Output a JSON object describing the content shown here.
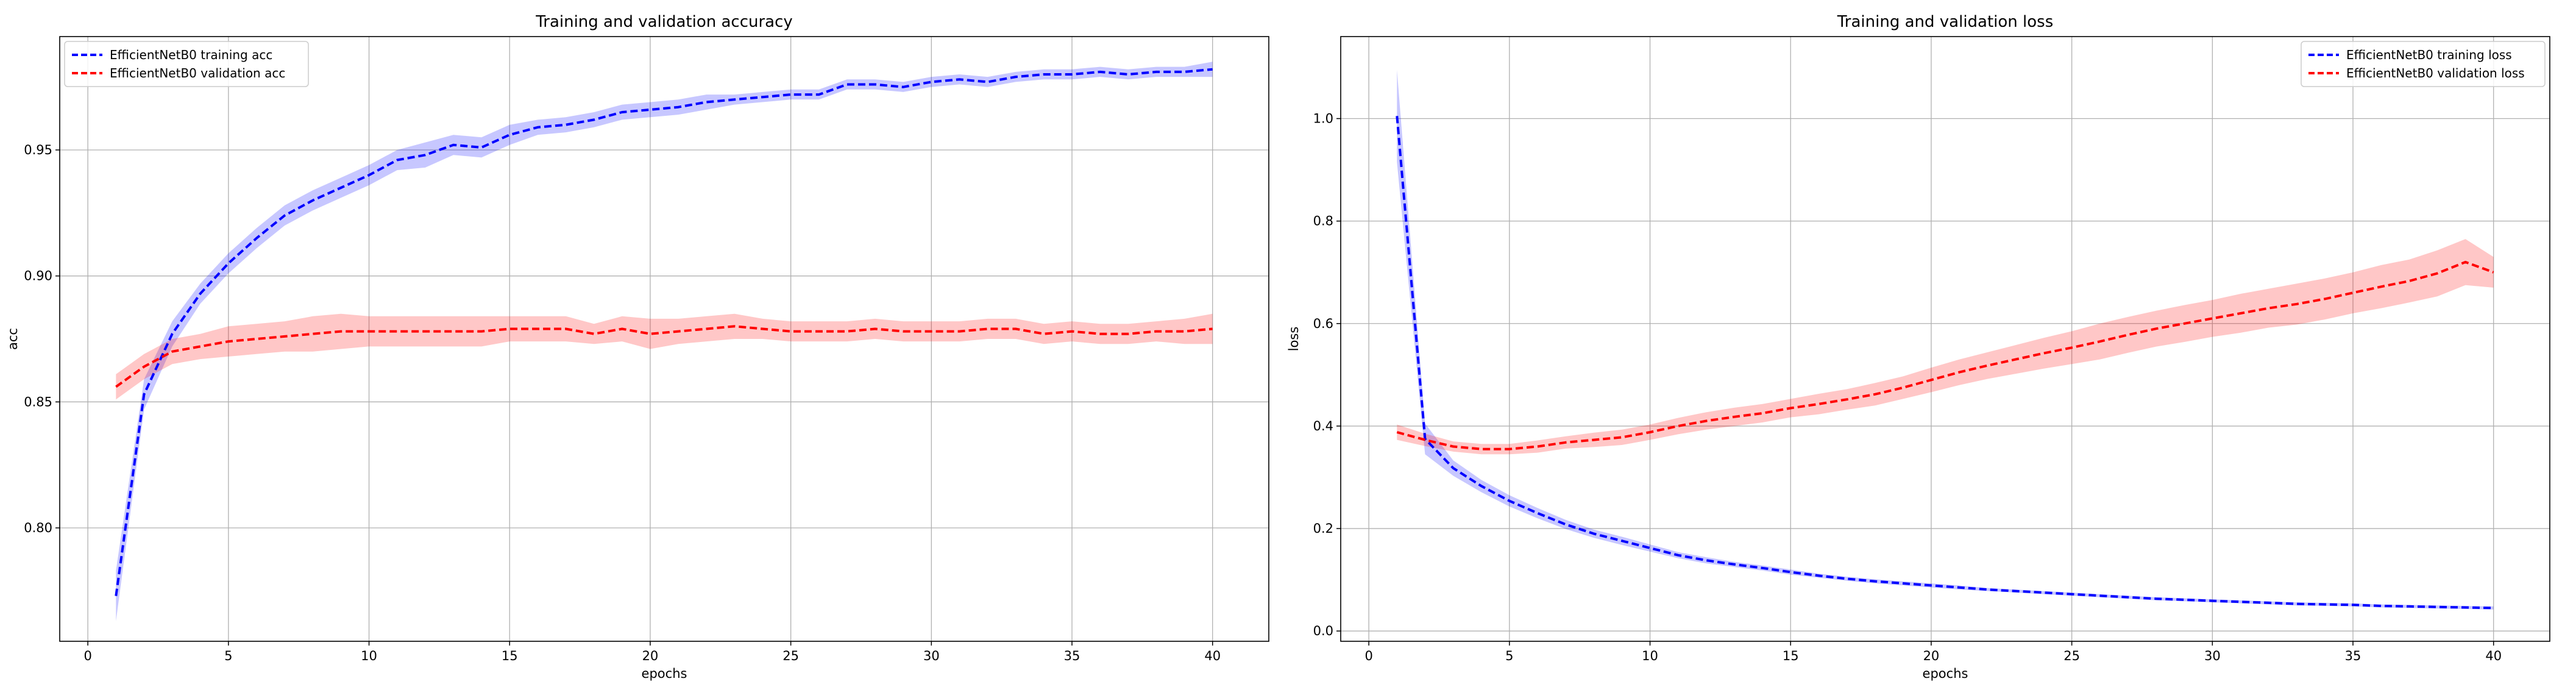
{
  "chart_data": [
    {
      "type": "line",
      "title": "Training and validation accuracy",
      "xlabel": "epochs",
      "ylabel": "acc",
      "xlim": [
        -1,
        42
      ],
      "ylim": [
        0.755,
        0.995
      ],
      "xticks": [
        0,
        5,
        10,
        15,
        20,
        25,
        30,
        35,
        40
      ],
      "yticks": [
        0.8,
        0.85,
        0.9,
        0.95
      ],
      "grid": true,
      "legend_position": "top-left",
      "x": [
        1,
        2,
        3,
        4,
        5,
        6,
        7,
        8,
        9,
        10,
        11,
        12,
        13,
        14,
        15,
        16,
        17,
        18,
        19,
        20,
        21,
        22,
        23,
        24,
        25,
        26,
        27,
        28,
        29,
        30,
        31,
        32,
        33,
        34,
        35,
        36,
        37,
        38,
        39,
        40
      ],
      "series": [
        {
          "name": "EfficientNetB0 training acc",
          "color": "#0000ff",
          "values": [
            0.773,
            0.853,
            0.877,
            0.893,
            0.905,
            0.915,
            0.924,
            0.93,
            0.935,
            0.94,
            0.946,
            0.948,
            0.952,
            0.951,
            0.956,
            0.959,
            0.96,
            0.962,
            0.965,
            0.966,
            0.967,
            0.969,
            0.97,
            0.971,
            0.972,
            0.972,
            0.976,
            0.976,
            0.975,
            0.977,
            0.978,
            0.977,
            0.979,
            0.98,
            0.98,
            0.981,
            0.98,
            0.981,
            0.981,
            0.982
          ],
          "band": [
            0.01,
            0.006,
            0.005,
            0.004,
            0.004,
            0.004,
            0.004,
            0.004,
            0.004,
            0.004,
            0.004,
            0.005,
            0.004,
            0.004,
            0.004,
            0.003,
            0.003,
            0.003,
            0.003,
            0.003,
            0.003,
            0.003,
            0.002,
            0.002,
            0.002,
            0.002,
            0.002,
            0.002,
            0.002,
            0.002,
            0.002,
            0.002,
            0.002,
            0.002,
            0.002,
            0.002,
            0.002,
            0.002,
            0.002,
            0.003
          ]
        },
        {
          "name": "EfficientNetB0 validation acc",
          "color": "#ff0000",
          "values": [
            0.856,
            0.864,
            0.87,
            0.872,
            0.874,
            0.875,
            0.876,
            0.877,
            0.878,
            0.878,
            0.878,
            0.878,
            0.878,
            0.878,
            0.879,
            0.879,
            0.879,
            0.877,
            0.879,
            0.877,
            0.878,
            0.879,
            0.88,
            0.879,
            0.878,
            0.878,
            0.878,
            0.879,
            0.878,
            0.878,
            0.878,
            0.879,
            0.879,
            0.877,
            0.878,
            0.877,
            0.877,
            0.878,
            0.878,
            0.879
          ],
          "band": [
            0.005,
            0.005,
            0.005,
            0.005,
            0.006,
            0.006,
            0.006,
            0.007,
            0.007,
            0.006,
            0.006,
            0.006,
            0.006,
            0.006,
            0.005,
            0.005,
            0.005,
            0.004,
            0.005,
            0.006,
            0.005,
            0.005,
            0.005,
            0.004,
            0.004,
            0.004,
            0.004,
            0.004,
            0.004,
            0.004,
            0.004,
            0.004,
            0.004,
            0.004,
            0.004,
            0.004,
            0.004,
            0.004,
            0.005,
            0.006
          ]
        }
      ]
    },
    {
      "type": "line",
      "title": "Training and validation loss",
      "xlabel": "epochs",
      "ylabel": "loss",
      "xlim": [
        -1,
        42
      ],
      "ylim": [
        -0.02,
        1.16
      ],
      "xticks": [
        0,
        5,
        10,
        15,
        20,
        25,
        30,
        35,
        40
      ],
      "yticks": [
        0.0,
        0.2,
        0.4,
        0.6,
        0.8,
        1.0
      ],
      "grid": true,
      "legend_position": "top-right",
      "x": [
        1,
        2,
        3,
        4,
        5,
        6,
        7,
        8,
        9,
        10,
        11,
        12,
        13,
        14,
        15,
        16,
        17,
        18,
        19,
        20,
        21,
        22,
        23,
        24,
        25,
        26,
        27,
        28,
        29,
        30,
        31,
        32,
        33,
        34,
        35,
        36,
        37,
        38,
        39,
        40
      ],
      "series": [
        {
          "name": "EfficientNetB0 training loss",
          "color": "#0000ff",
          "values": [
            1.005,
            0.375,
            0.318,
            0.283,
            0.254,
            0.23,
            0.208,
            0.19,
            0.176,
            0.162,
            0.148,
            0.138,
            0.13,
            0.123,
            0.115,
            0.108,
            0.102,
            0.097,
            0.093,
            0.089,
            0.085,
            0.081,
            0.078,
            0.075,
            0.072,
            0.069,
            0.066,
            0.063,
            0.061,
            0.059,
            0.057,
            0.055,
            0.053,
            0.052,
            0.051,
            0.049,
            0.048,
            0.047,
            0.046,
            0.045
          ],
          "band": [
            0.09,
            0.03,
            0.015,
            0.012,
            0.011,
            0.01,
            0.009,
            0.008,
            0.008,
            0.007,
            0.006,
            0.006,
            0.005,
            0.005,
            0.005,
            0.004,
            0.004,
            0.004,
            0.004,
            0.004,
            0.004,
            0.003,
            0.003,
            0.003,
            0.003,
            0.003,
            0.003,
            0.003,
            0.003,
            0.003,
            0.003,
            0.003,
            0.003,
            0.003,
            0.003,
            0.003,
            0.003,
            0.003,
            0.003,
            0.003
          ]
        },
        {
          "name": "EfficientNetB0 validation loss",
          "color": "#ff0000",
          "values": [
            0.388,
            0.373,
            0.36,
            0.355,
            0.355,
            0.36,
            0.368,
            0.373,
            0.378,
            0.388,
            0.4,
            0.41,
            0.418,
            0.425,
            0.435,
            0.443,
            0.452,
            0.462,
            0.475,
            0.49,
            0.505,
            0.518,
            0.53,
            0.542,
            0.553,
            0.565,
            0.578,
            0.59,
            0.6,
            0.61,
            0.62,
            0.63,
            0.638,
            0.648,
            0.66,
            0.672,
            0.683,
            0.698,
            0.72,
            0.7
          ],
          "band": [
            0.015,
            0.012,
            0.01,
            0.01,
            0.01,
            0.012,
            0.012,
            0.014,
            0.015,
            0.015,
            0.016,
            0.017,
            0.018,
            0.018,
            0.018,
            0.02,
            0.02,
            0.022,
            0.022,
            0.024,
            0.025,
            0.026,
            0.028,
            0.03,
            0.032,
            0.035,
            0.035,
            0.035,
            0.036,
            0.036,
            0.038,
            0.038,
            0.04,
            0.04,
            0.04,
            0.042,
            0.042,
            0.045,
            0.045,
            0.03
          ]
        }
      ]
    }
  ]
}
